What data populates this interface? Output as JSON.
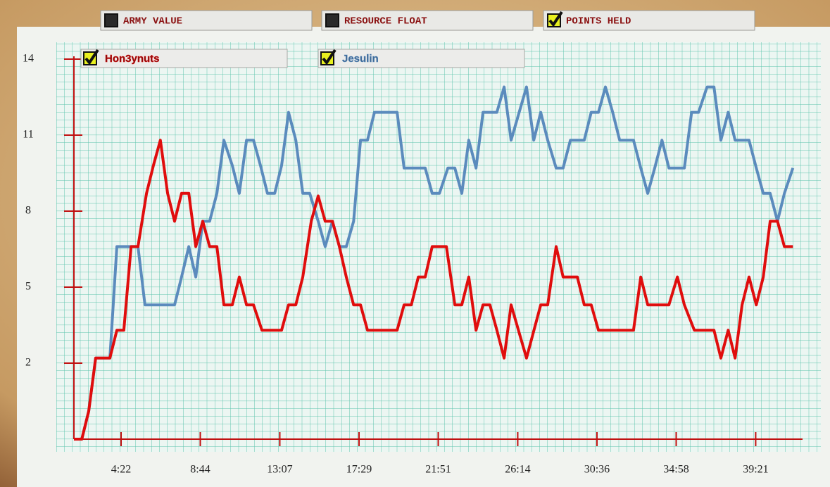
{
  "tabs": [
    {
      "label": "ARMY VALUE",
      "checked": false
    },
    {
      "label": "RESOURCE FLOAT",
      "checked": false
    },
    {
      "label": "POINTS HELD",
      "checked": true
    }
  ],
  "chart_data": {
    "type": "line",
    "xlim": [
      106,
      2516
    ],
    "xticks": [
      {
        "value": 262,
        "label": "4:22"
      },
      {
        "value": 524,
        "label": "8:44"
      },
      {
        "value": 787,
        "label": "13:07"
      },
      {
        "value": 1049,
        "label": "17:29"
      },
      {
        "value": 1311,
        "label": "21:51"
      },
      {
        "value": 1574,
        "label": "26:14"
      },
      {
        "value": 1836,
        "label": "30:36"
      },
      {
        "value": 2098,
        "label": "34:58"
      },
      {
        "value": 2361,
        "label": "39:21"
      }
    ],
    "ylim": [
      -1,
      14
    ],
    "yticks": [
      14,
      11,
      8,
      5,
      2
    ],
    "grid": true,
    "series": [
      {
        "name": "Hon3ynuts",
        "color": "#e00d0d",
        "checked": true,
        "x": [
          106,
          132,
          155,
          178,
          225,
          248,
          271,
          295,
          318,
          346,
          369,
          392,
          416,
          439,
          462,
          486,
          509,
          532,
          555,
          579,
          602,
          630,
          653,
          677,
          700,
          728,
          793,
          816,
          840,
          863,
          891,
          914,
          937,
          961,
          984,
          1007,
          1031,
          1054,
          1077,
          1175,
          1198,
          1222,
          1245,
          1268,
          1291,
          1338,
          1366,
          1389,
          1412,
          1436,
          1459,
          1482,
          1505,
          1529,
          1552,
          1603,
          1650,
          1673,
          1701,
          1724,
          1771,
          1794,
          1817,
          1841,
          1957,
          1981,
          2004,
          2074,
          2102,
          2125,
          2158,
          2223,
          2246,
          2270,
          2293,
          2316,
          2339,
          2363,
          2386,
          2409,
          2433,
          2456,
          2484
        ],
        "values": [
          -1,
          -1,
          0.1,
          2.2,
          2.2,
          3.3,
          3.3,
          6.6,
          6.6,
          8.7,
          9.8,
          10.8,
          8.7,
          7.6,
          8.7,
          8.7,
          6.6,
          7.6,
          6.6,
          6.6,
          4.3,
          4.3,
          5.4,
          4.3,
          4.3,
          3.3,
          3.3,
          4.3,
          4.3,
          5.4,
          7.6,
          8.6,
          7.6,
          7.6,
          6.6,
          5.4,
          4.3,
          4.3,
          3.3,
          3.3,
          4.3,
          4.3,
          5.4,
          5.4,
          6.6,
          6.6,
          4.3,
          4.3,
          5.4,
          3.3,
          4.3,
          4.3,
          3.3,
          2.2,
          4.3,
          2.2,
          4.3,
          4.3,
          6.6,
          5.4,
          5.4,
          4.3,
          4.3,
          3.3,
          3.3,
          5.4,
          4.3,
          4.3,
          5.4,
          4.3,
          3.3,
          3.3,
          2.2,
          3.3,
          2.2,
          4.3,
          5.4,
          4.3,
          5.4,
          7.6,
          7.6,
          6.6,
          6.6
        ]
      },
      {
        "name": "Jesulin",
        "color": "#5b8bbd",
        "checked": true,
        "x": [
          106,
          132,
          155,
          178,
          225,
          248,
          318,
          341,
          439,
          462,
          486,
          509,
          532,
          555,
          579,
          602,
          630,
          653,
          677,
          700,
          723,
          746,
          770,
          793,
          816,
          840,
          863,
          886,
          914,
          937,
          961,
          984,
          1007,
          1031,
          1054,
          1077,
          1100,
          1175,
          1198,
          1268,
          1291,
          1315,
          1343,
          1366,
          1389,
          1412,
          1436,
          1459,
          1505,
          1529,
          1552,
          1603,
          1627,
          1650,
          1673,
          1701,
          1724,
          1748,
          1794,
          1817,
          1841,
          1864,
          1888,
          1911,
          1957,
          1981,
          2004,
          2027,
          2051,
          2074,
          2125,
          2149,
          2172,
          2200,
          2223,
          2246,
          2270,
          2293,
          2339,
          2363,
          2386,
          2409,
          2433,
          2456,
          2484
        ],
        "values": [
          -1,
          -1,
          0.1,
          2.2,
          2.2,
          6.6,
          6.6,
          4.3,
          4.3,
          5.4,
          6.6,
          5.4,
          7.6,
          7.6,
          8.7,
          10.8,
          9.8,
          8.7,
          10.8,
          10.8,
          9.8,
          8.7,
          8.7,
          9.8,
          11.9,
          10.8,
          8.7,
          8.7,
          7.6,
          6.6,
          7.6,
          6.6,
          6.6,
          7.6,
          10.8,
          10.8,
          11.9,
          11.9,
          9.7,
          9.7,
          8.7,
          8.7,
          9.7,
          9.7,
          8.7,
          10.8,
          9.7,
          11.9,
          11.9,
          12.9,
          10.8,
          12.9,
          10.8,
          11.9,
          10.8,
          9.7,
          9.7,
          10.8,
          10.8,
          11.9,
          11.9,
          12.9,
          11.9,
          10.8,
          10.8,
          9.7,
          8.7,
          9.7,
          10.8,
          9.7,
          9.7,
          11.9,
          11.9,
          12.9,
          12.9,
          10.8,
          11.9,
          10.8,
          10.8,
          9.7,
          8.7,
          8.7,
          7.6,
          8.7,
          9.7
        ]
      }
    ]
  }
}
